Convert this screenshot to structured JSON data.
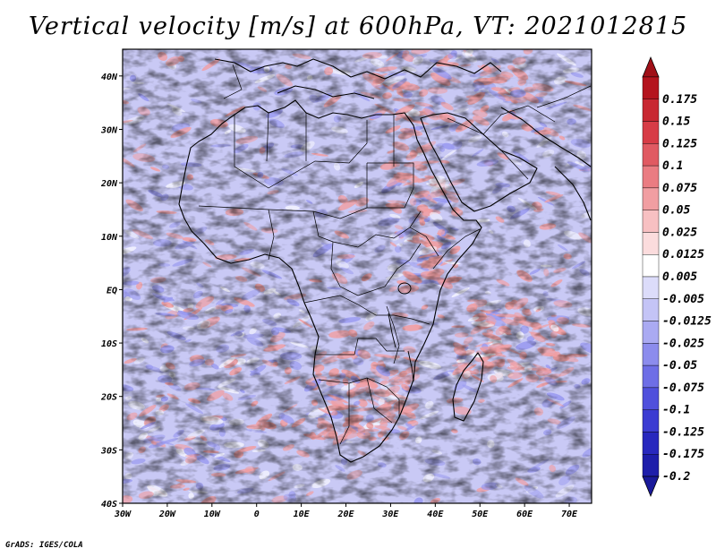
{
  "title": "Vertical velocity [m/s] at 600hPa, VT: 2021012815",
  "credit": "GrADS: IGES/COLA",
  "map": {
    "lon_range": [
      -30,
      75
    ],
    "lat_range": [
      -40,
      45
    ],
    "lon_ticks": [
      {
        "value": -30,
        "label": "30W"
      },
      {
        "value": -20,
        "label": "20W"
      },
      {
        "value": -10,
        "label": "10W"
      },
      {
        "value": 0,
        "label": "0"
      },
      {
        "value": 10,
        "label": "10E"
      },
      {
        "value": 20,
        "label": "20E"
      },
      {
        "value": 30,
        "label": "30E"
      },
      {
        "value": 40,
        "label": "40E"
      },
      {
        "value": 50,
        "label": "50E"
      },
      {
        "value": 60,
        "label": "60E"
      },
      {
        "value": 70,
        "label": "70E"
      }
    ],
    "lat_ticks": [
      {
        "value": 40,
        "label": "40N"
      },
      {
        "value": 30,
        "label": "30N"
      },
      {
        "value": 20,
        "label": "20N"
      },
      {
        "value": 10,
        "label": "10N"
      },
      {
        "value": 0,
        "label": "EQ"
      },
      {
        "value": -10,
        "label": "10S"
      },
      {
        "value": -20,
        "label": "20S"
      },
      {
        "value": -30,
        "label": "30S"
      },
      {
        "value": -40,
        "label": "40S"
      }
    ]
  },
  "colorbar": {
    "levels": [
      {
        "label": "0.175",
        "color": "#b4141e"
      },
      {
        "label": "0.15",
        "color": "#c82832"
      },
      {
        "label": "0.125",
        "color": "#d73c46"
      },
      {
        "label": "0.1",
        "color": "#e05a62"
      },
      {
        "label": "0.075",
        "color": "#ea7c82"
      },
      {
        "label": "0.05",
        "color": "#f19ea2"
      },
      {
        "label": "0.025",
        "color": "#f7c0c2"
      },
      {
        "label": "0.0125",
        "color": "#fbdcdd"
      },
      {
        "label": "0.005",
        "color": "#ffffff"
      },
      {
        "label": "-0.005",
        "color": "#dcdcfa"
      },
      {
        "label": "-0.0125",
        "color": "#c4c4f6"
      },
      {
        "label": "-0.025",
        "color": "#aaaaf2"
      },
      {
        "label": "-0.05",
        "color": "#8c8ced"
      },
      {
        "label": "-0.075",
        "color": "#6e6ee6"
      },
      {
        "label": "-0.1",
        "color": "#5050dc"
      },
      {
        "label": "-0.125",
        "color": "#3c3cd2"
      },
      {
        "label": "-0.175",
        "color": "#2828be"
      },
      {
        "label": "-0.2",
        "color": "#1e1eaa"
      }
    ],
    "top_cap_color": "#a01018",
    "bottom_cap_color": "#1a1a9a",
    "field_colors": {
      "positive": "#f19ea2",
      "negative": "#9a9af0",
      "neutral": "#f4f4ff"
    }
  }
}
